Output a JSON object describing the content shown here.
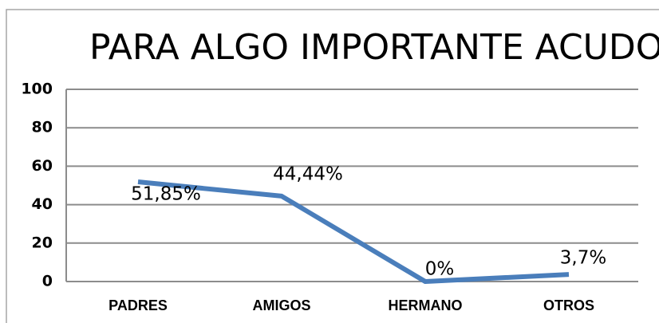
{
  "chart_data": {
    "type": "line",
    "title": "PARA ALGO IMPORTANTE ACUDO",
    "categories": [
      "PADRES",
      "AMIGOS",
      "HERMANO",
      "OTROS"
    ],
    "values": [
      51.85,
      44.44,
      0,
      3.7
    ],
    "value_labels": [
      "51,85%",
      "44,44%",
      "0%",
      "3,7%"
    ],
    "color": "#4a7ebb",
    "ylim": [
      0,
      100
    ],
    "yticks": [
      0,
      20,
      40,
      60,
      80,
      100
    ],
    "grid": true
  }
}
